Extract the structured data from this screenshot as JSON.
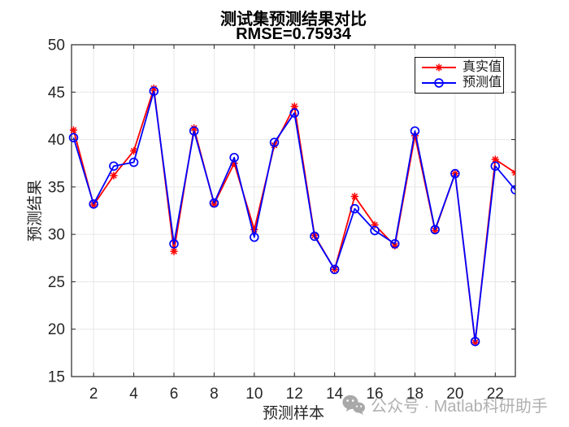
{
  "watermark": {
    "text": "公众号 · Matlab科研助手",
    "icon": "wechat-icon",
    "color": "#b0b0b0"
  },
  "chart_data": {
    "type": "line",
    "title": "测试集预测结果对比",
    "subtitle": "RMSE=0.75934",
    "xlabel": "预测样本",
    "ylabel": "预测结果",
    "x": [
      1,
      2,
      3,
      4,
      5,
      6,
      7,
      8,
      9,
      10,
      11,
      12,
      13,
      14,
      15,
      16,
      17,
      18,
      19,
      20,
      21,
      22,
      23
    ],
    "series": [
      {
        "name": "真实值",
        "color": "#ff0000",
        "marker": "asterisk",
        "values": [
          41.0,
          33.1,
          36.2,
          38.8,
          45.4,
          28.2,
          41.2,
          33.2,
          37.5,
          30.5,
          39.4,
          43.5,
          29.9,
          26.3,
          34.0,
          31.0,
          28.8,
          40.4,
          30.4,
          36.4,
          18.6,
          37.9,
          36.5
        ]
      },
      {
        "name": "预测值",
        "color": "#0000ff",
        "marker": "circle",
        "values": [
          40.2,
          33.2,
          37.2,
          37.6,
          45.1,
          29.0,
          40.9,
          33.3,
          38.1,
          29.7,
          39.7,
          42.8,
          29.8,
          26.3,
          32.7,
          30.4,
          29.0,
          40.9,
          30.5,
          36.4,
          18.7,
          37.2,
          34.7
        ]
      }
    ],
    "xlim": [
      0.9,
      23.0
    ],
    "ylim": [
      15,
      50
    ],
    "xticks": [
      2,
      4,
      6,
      8,
      10,
      12,
      14,
      16,
      18,
      20,
      22
    ],
    "yticks": [
      15,
      20,
      25,
      30,
      35,
      40,
      45,
      50
    ],
    "grid": true,
    "legend_position": "top-right",
    "grid_color": "#e6e6e6",
    "axis_color": "#262626",
    "tick_label_color": "#262626",
    "tick_label_size": 19
  }
}
